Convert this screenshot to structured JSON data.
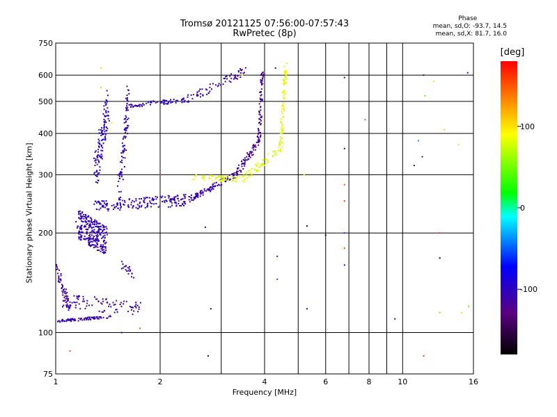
{
  "chart_data": {
    "type": "scatter",
    "title": "Tromsø 20121125 07:56:00-07:57:43",
    "subtitle": "RwPretec (8p)",
    "xlabel": "Frequency [MHz]",
    "ylabel": "Stationary phase Virtual Height [km]",
    "x_scale": "log",
    "y_scale": "log",
    "xlim": [
      1,
      16
    ],
    "ylim": [
      75,
      750
    ],
    "x_ticks": [
      1,
      2,
      4,
      6,
      8,
      10,
      16
    ],
    "x_minor_ticks": [
      3,
      5,
      7,
      9
    ],
    "y_ticks": [
      75,
      100,
      200,
      300,
      400,
      500,
      600,
      750
    ],
    "grid": true,
    "stats": {
      "heading": "Phase",
      "line_o": "mean, sd,O: -93.7, 14.5",
      "line_x": "mean, sd,X:  81.7, 16.0"
    },
    "colorbar": {
      "label": "[deg]",
      "range": [
        -180,
        180
      ],
      "ticks": [
        -100,
        0,
        100
      ],
      "colors": [
        "#000000",
        "#5a0080",
        "#0000ff",
        "#00ffff",
        "#00ff00",
        "#ffff00",
        "#ff0000"
      ]
    },
    "traces": [
      {
        "f_start": 1.0,
        "f_end": 1.45,
        "h_start": 108,
        "h_end": 112,
        "spread": 0.01,
        "phase": -110,
        "n": 80
      },
      {
        "f_start": 1.0,
        "f_end": 1.1,
        "h_start": 160,
        "h_end": 118,
        "spread": 0.04,
        "phase": -115,
        "n": 60
      },
      {
        "f_start": 1.05,
        "f_end": 1.75,
        "h_start": 125,
        "h_end": 118,
        "spread": 0.05,
        "phase": -110,
        "n": 90
      },
      {
        "f_start": 1.55,
        "f_end": 1.68,
        "h_start": 160,
        "h_end": 150,
        "spread": 0.03,
        "phase": -110,
        "n": 20
      },
      {
        "f_start": 1.15,
        "f_end": 1.4,
        "h_start": 215,
        "h_end": 190,
        "spread": 0.1,
        "phase": -105,
        "n": 280
      },
      {
        "f_start": 1.3,
        "f_end": 2.4,
        "h_start": 240,
        "h_end": 252,
        "spread": 0.04,
        "phase": -105,
        "n": 180
      },
      {
        "f_start": 2.4,
        "f_end": 3.3,
        "h_start": 252,
        "h_end": 300,
        "spread": 0.02,
        "phase": -110,
        "n": 90
      },
      {
        "f_start": 3.3,
        "f_end": 3.85,
        "h_start": 300,
        "h_end": 380,
        "spread": 0.03,
        "phase": -120,
        "n": 70
      },
      {
        "f_start": 3.85,
        "f_end": 3.95,
        "h_start": 380,
        "h_end": 620,
        "spread": 0.04,
        "phase": -120,
        "n": 70
      },
      {
        "f_start": 1.6,
        "f_end": 2.4,
        "h_start": 485,
        "h_end": 505,
        "spread": 0.015,
        "phase": -105,
        "n": 70
      },
      {
        "f_start": 2.4,
        "f_end": 3.5,
        "h_start": 505,
        "h_end": 620,
        "spread": 0.03,
        "phase": -110,
        "n": 70
      },
      {
        "f_start": 1.3,
        "f_end": 1.42,
        "h_start": 300,
        "h_end": 500,
        "spread": 0.12,
        "phase": -100,
        "n": 120
      },
      {
        "f_start": 1.52,
        "f_end": 1.62,
        "h_start": 260,
        "h_end": 520,
        "spread": 0.12,
        "phase": -105,
        "n": 90
      },
      {
        "f_start": 2.5,
        "f_end": 3.5,
        "h_start": 295,
        "h_end": 290,
        "spread": 0.02,
        "phase": 85,
        "n": 60
      },
      {
        "f_start": 3.5,
        "f_end": 4.45,
        "h_start": 295,
        "h_end": 360,
        "spread": 0.03,
        "phase": 80,
        "n": 60
      },
      {
        "f_start": 4.45,
        "f_end": 4.6,
        "h_start": 360,
        "h_end": 640,
        "spread": 0.04,
        "phase": 85,
        "n": 90
      }
    ],
    "scatter_points": [
      {
        "f": 6.8,
        "h": 590,
        "phase": -120
      },
      {
        "f": 6.8,
        "h": 360,
        "phase": -140
      },
      {
        "f": 6.8,
        "h": 280,
        "phase": 150
      },
      {
        "f": 6.8,
        "h": 250,
        "phase": 160
      },
      {
        "f": 6.8,
        "h": 200,
        "phase": -60
      },
      {
        "f": 6.8,
        "h": 180,
        "phase": 150
      },
      {
        "f": 6.8,
        "h": 160,
        "phase": -110
      },
      {
        "f": 7.8,
        "h": 440,
        "phase": 150
      },
      {
        "f": 5.3,
        "h": 210,
        "phase": -170
      },
      {
        "f": 5.2,
        "h": 300,
        "phase": 90
      },
      {
        "f": 4.35,
        "h": 170,
        "phase": -110
      },
      {
        "f": 4.35,
        "h": 145,
        "phase": -60
      },
      {
        "f": 5.3,
        "h": 118,
        "phase": -80
      },
      {
        "f": 6.0,
        "h": 197,
        "phase": -170
      },
      {
        "f": 9.5,
        "h": 110,
        "phase": -100
      },
      {
        "f": 10.8,
        "h": 320,
        "phase": -140
      },
      {
        "f": 11.1,
        "h": 380,
        "phase": -40
      },
      {
        "f": 11.4,
        "h": 340,
        "phase": -130
      },
      {
        "f": 11.5,
        "h": 600,
        "phase": -110
      },
      {
        "f": 11.6,
        "h": 520,
        "phase": 40
      },
      {
        "f": 12.3,
        "h": 575,
        "phase": 100
      },
      {
        "f": 12.8,
        "h": 200,
        "phase": 160
      },
      {
        "f": 12.8,
        "h": 168,
        "phase": -170
      },
      {
        "f": 12.8,
        "h": 115,
        "phase": 120
      },
      {
        "f": 13.2,
        "h": 410,
        "phase": 110
      },
      {
        "f": 14.5,
        "h": 370,
        "phase": 100
      },
      {
        "f": 14.8,
        "h": 115,
        "phase": 100
      },
      {
        "f": 15.5,
        "h": 120,
        "phase": 40
      },
      {
        "f": 15.4,
        "h": 610,
        "phase": -110
      },
      {
        "f": 11.5,
        "h": 85,
        "phase": 160
      },
      {
        "f": 1.1,
        "h": 88,
        "phase": 150
      },
      {
        "f": 2.75,
        "h": 85,
        "phase": -170
      },
      {
        "f": 2.8,
        "h": 118,
        "phase": -150
      },
      {
        "f": 2.7,
        "h": 208,
        "phase": -90
      },
      {
        "f": 1.75,
        "h": 103,
        "phase": 150
      },
      {
        "f": 1.55,
        "h": 100,
        "phase": -100
      },
      {
        "f": 1.35,
        "h": 630,
        "phase": 100
      },
      {
        "f": 1.35,
        "h": 550,
        "phase": 110
      },
      {
        "f": 1.45,
        "h": 430,
        "phase": 80
      },
      {
        "f": 4.3,
        "h": 630,
        "phase": -110
      },
      {
        "f": 3.45,
        "h": 600,
        "phase": 90
      },
      {
        "f": 2.0,
        "h": 300,
        "phase": 160
      }
    ]
  }
}
